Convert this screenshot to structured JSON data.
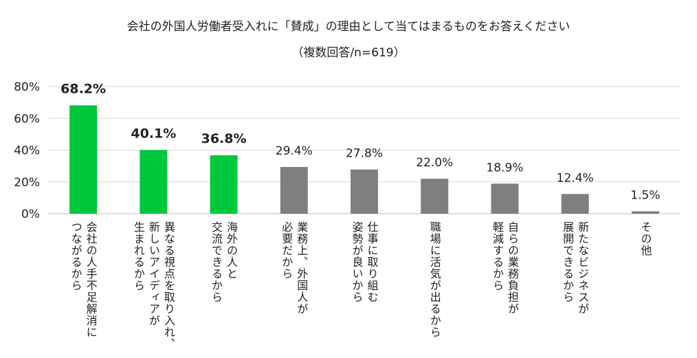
{
  "title": "会社の外国人労働者受入れに「賛成」の理由として当てはまるものをお答えください",
  "subtitle": "（複数回答/n=619）",
  "colors": {
    "highlight": "#00c83c",
    "normal": "#7f7f7f",
    "grid": "#d9d9d9"
  },
  "chart_data": {
    "type": "bar",
    "title": "会社の外国人労働者受入れに「賛成」の理由として当てはまるものをお答えください",
    "subtitle": "（複数回答/n=619）",
    "ylim": [
      0,
      80
    ],
    "yticks": [
      "0%",
      "20%",
      "40%",
      "60%",
      "80%"
    ],
    "grid": true,
    "values": [
      68.2,
      40.1,
      36.8,
      29.4,
      27.8,
      22.0,
      18.9,
      12.4,
      1.5
    ],
    "value_labels": [
      "68.2%",
      "40.1%",
      "36.8%",
      "29.4%",
      "27.8%",
      "22.0%",
      "18.9%",
      "12.4%",
      "1.5%"
    ],
    "highlighted": [
      true,
      true,
      true,
      false,
      false,
      false,
      false,
      false,
      false
    ],
    "categories": [
      [
        "会社の人手不足解消に",
        "つながるから"
      ],
      [
        "異なる視点を取り入れ、",
        "新しいアイディアが",
        "生まれるから"
      ],
      [
        "海外の人と",
        "交流できるから"
      ],
      [
        "業務上、外国人が",
        "必要だから"
      ],
      [
        "仕事に取り組む",
        "姿勢が良いから"
      ],
      [
        "職場に活気が出るから"
      ],
      [
        "自らの業務負担が",
        "軽減するから"
      ],
      [
        "新たなビジネスが",
        "展開できるから"
      ],
      [
        "その他"
      ]
    ]
  }
}
